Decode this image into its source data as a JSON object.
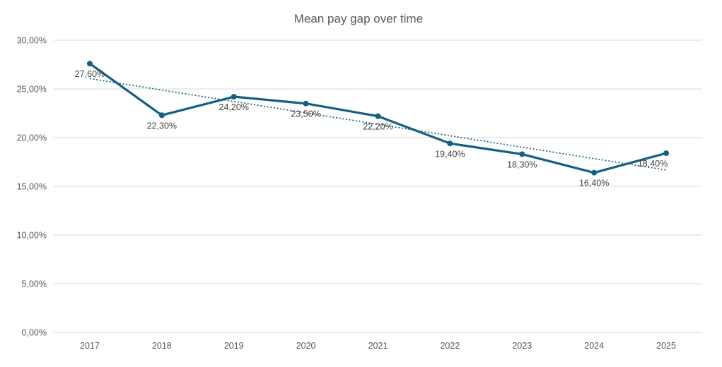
{
  "chart_data": {
    "type": "line",
    "title": "Mean pay gap over time",
    "categories": [
      "2017",
      "2018",
      "2019",
      "2020",
      "2021",
      "2022",
      "2023",
      "2024",
      "2025"
    ],
    "series": [
      {
        "name": "Mean pay gap",
        "values": [
          27.6,
          22.3,
          24.2,
          23.5,
          22.2,
          19.4,
          18.3,
          16.4,
          18.4
        ],
        "labels": [
          "27,60%",
          "22,30%",
          "24,20%",
          "23,50%",
          "22,20%",
          "19,40%",
          "18,30%",
          "16,40%",
          "18,40%"
        ]
      }
    ],
    "xlabel": "",
    "ylabel": "",
    "ylim": [
      0,
      30
    ],
    "ytick_step": 5,
    "ytick_labels": [
      "0,00%",
      "5,00%",
      "10,00%",
      "15,00%",
      "20,00%",
      "25,00%",
      "30,00%"
    ],
    "grid": true,
    "legend": "none",
    "trendline": {
      "type": "linear",
      "dash": "dotted"
    },
    "label_dx": [
      0,
      0,
      0,
      0,
      0,
      0,
      0,
      0,
      -19
    ],
    "colors": {
      "series": "#156082",
      "trendline": "#156082",
      "gridline": "#d9d9d9",
      "axis_text": "#595959",
      "label_text": "#404040",
      "title_text": "#595959",
      "background": "#ffffff"
    }
  }
}
